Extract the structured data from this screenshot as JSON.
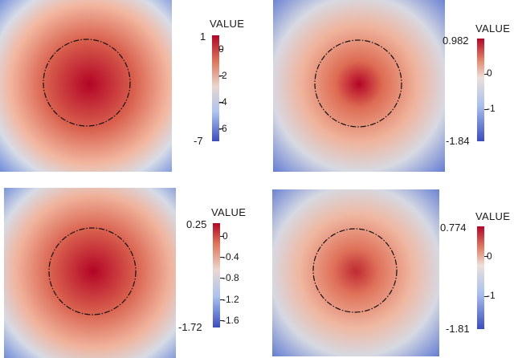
{
  "colormap": {
    "low": "#3b4cc0",
    "mid": "#dddddd",
    "high": "#b40426"
  },
  "contour": {
    "color": "#111111",
    "style": "dash-dot"
  },
  "panels": [
    {
      "id": "top-left",
      "colorbar": {
        "title": "VALUE",
        "max_label": "1",
        "min_label": "-7",
        "ticks": [
          "0",
          "-2",
          "-4",
          "-6"
        ],
        "range": [
          -7,
          1
        ],
        "tick_values": [
          0,
          -2,
          -4,
          -6
        ]
      },
      "field": {
        "peak": "broad"
      }
    },
    {
      "id": "top-right",
      "colorbar": {
        "title": "VALUE",
        "max_label": "0.982",
        "min_label": "-1.84",
        "ticks": [
          "0",
          "-1"
        ],
        "range": [
          -1.84,
          0.982
        ],
        "tick_values": [
          0,
          -1
        ]
      },
      "field": {
        "peak": "sharp"
      }
    },
    {
      "id": "bottom-left",
      "colorbar": {
        "title": "VALUE",
        "max_label": "0.25",
        "min_label": "-1.72",
        "ticks": [
          "0",
          "-0.4",
          "-0.8",
          "-1.2",
          "-1.6"
        ],
        "range": [
          -1.72,
          0.25
        ],
        "tick_values": [
          0,
          -0.4,
          -0.8,
          -1.2,
          -1.6
        ]
      },
      "field": {
        "peak": "broad"
      }
    },
    {
      "id": "bottom-right",
      "colorbar": {
        "title": "VALUE",
        "max_label": "0.774",
        "min_label": "-1.81",
        "ticks": [
          "0",
          "-1"
        ],
        "range": [
          -1.81,
          0.774
        ],
        "tick_values": [
          0,
          -1
        ]
      },
      "field": {
        "peak": "sharp"
      }
    }
  ]
}
